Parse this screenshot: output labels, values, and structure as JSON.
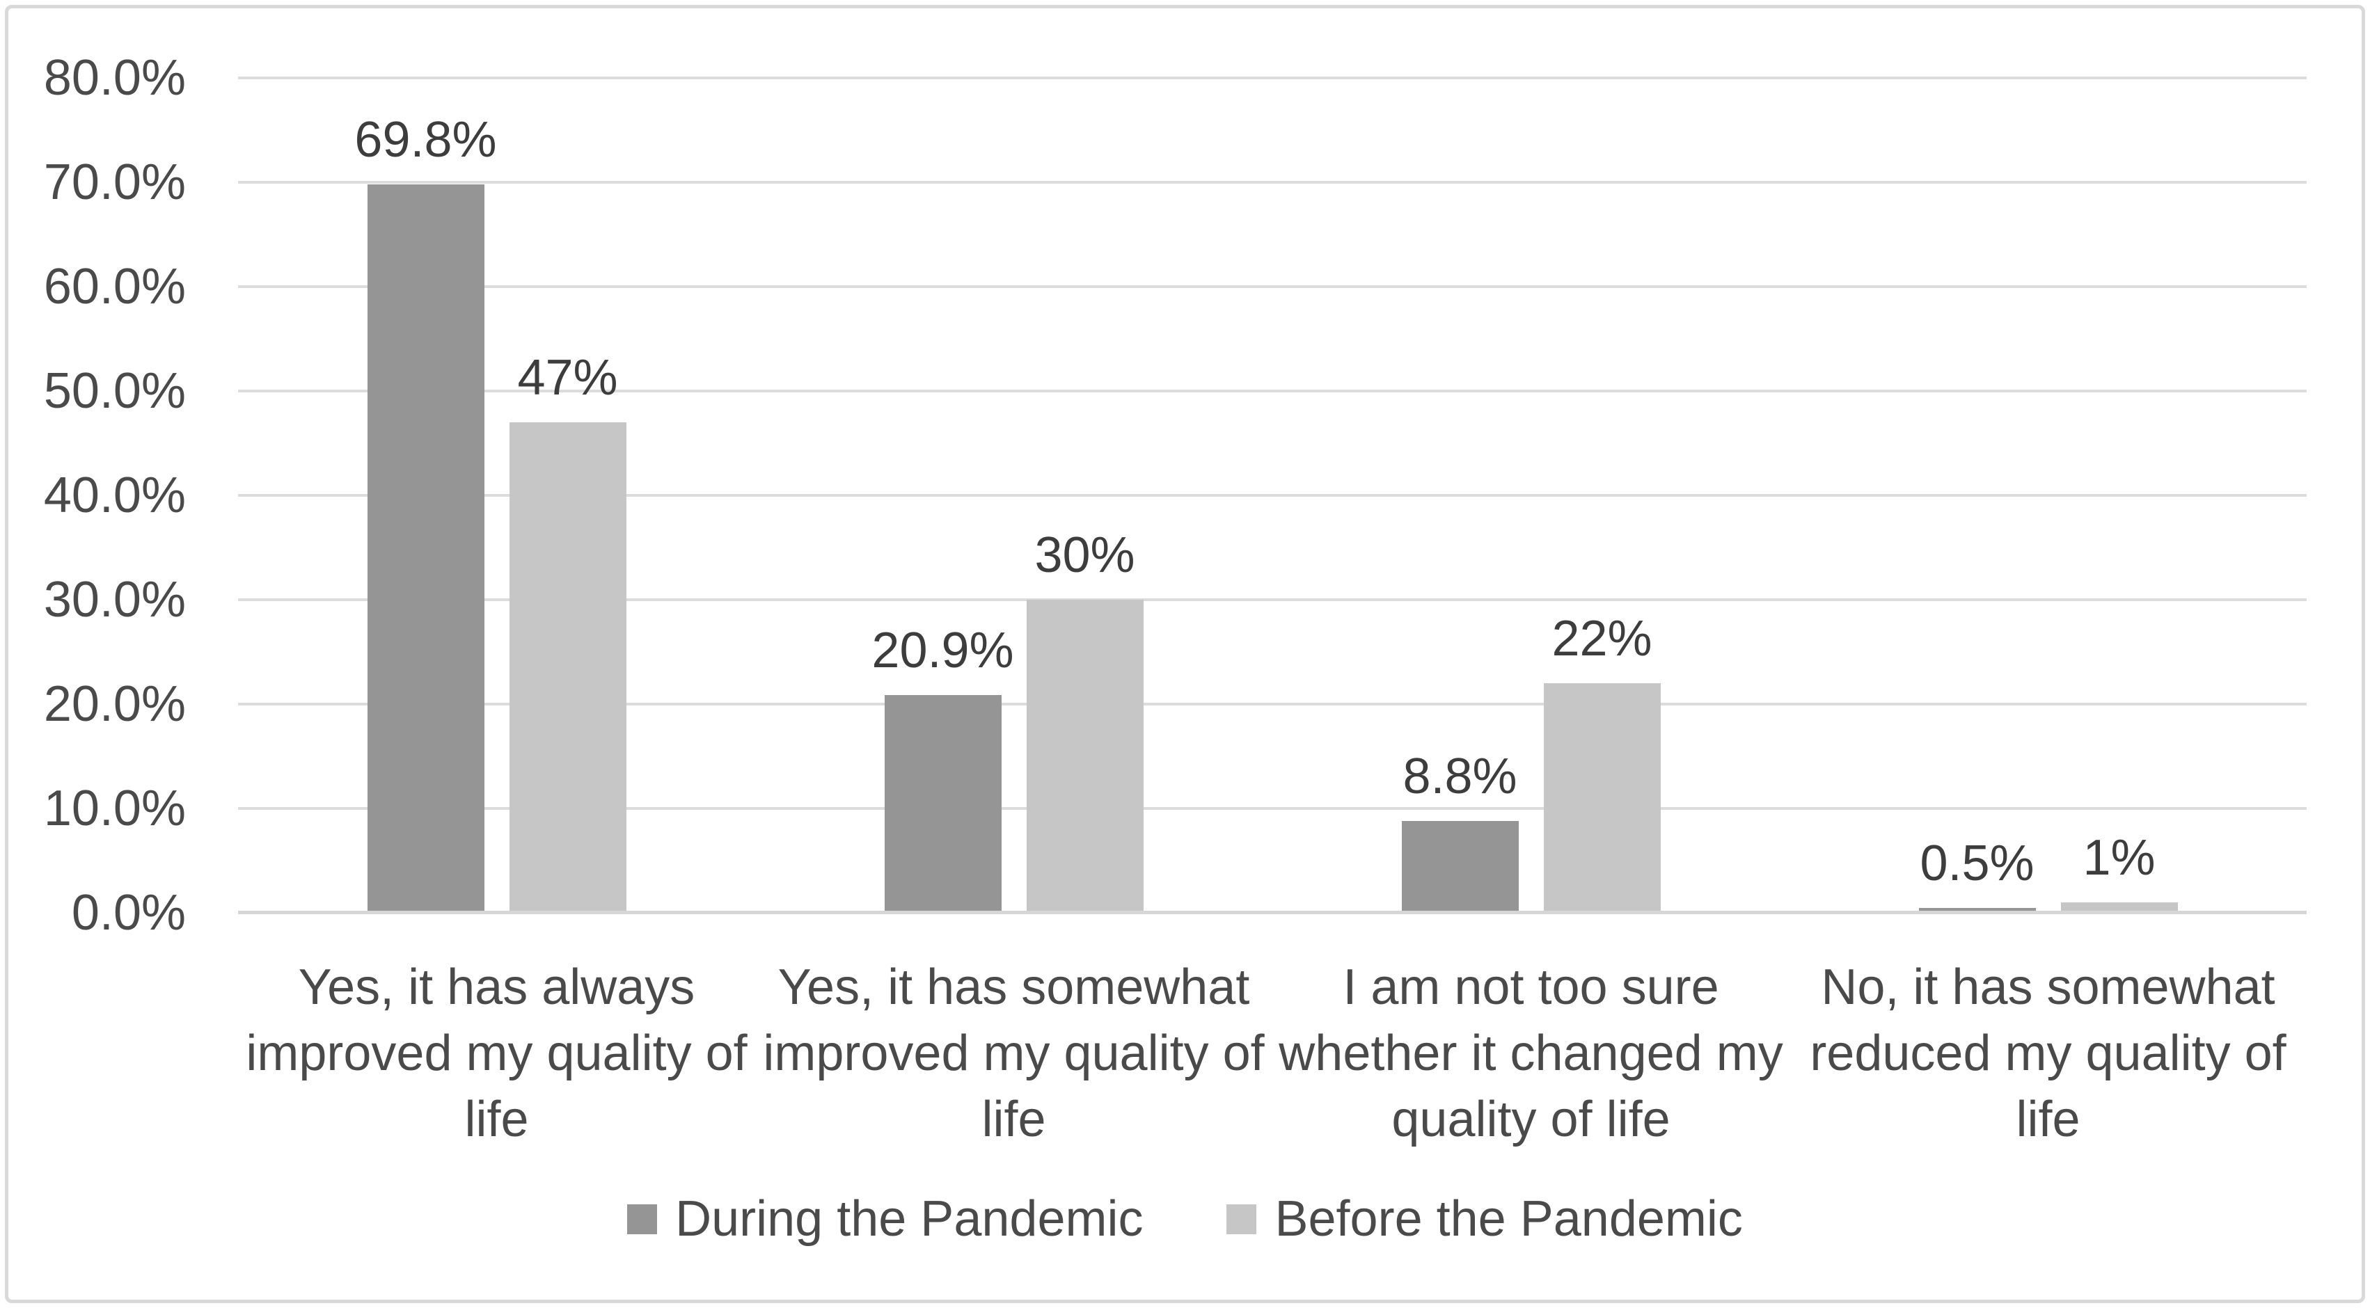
{
  "chart_data": {
    "type": "bar",
    "title": "",
    "xlabel": "",
    "ylabel": "",
    "categories": [
      "Yes, it has always improved my quality of life",
      "Yes, it has somewhat improved my quality of life",
      "I am not too sure whether it changed my quality of life",
      "No, it has somewhat reduced my quality of life"
    ],
    "categories_lines": [
      [
        "Yes, it has always",
        "improved my quality of",
        "life"
      ],
      [
        "Yes, it has somewhat",
        "improved my quality of",
        "life"
      ],
      [
        "I am not too sure",
        "whether it changed my",
        "quality of life"
      ],
      [
        "No, it has somewhat",
        "reduced my quality of",
        "life"
      ]
    ],
    "series": [
      {
        "name": "During the Pandemic",
        "key": "during-the-pandemic",
        "color": "#959595",
        "values": [
          69.8,
          20.9,
          8.8,
          0.5
        ],
        "data_labels": [
          "69.8%",
          "20.9%",
          "8.8%",
          "0.5%"
        ]
      },
      {
        "name": "Before the Pandemic",
        "key": "before-the-pandemic",
        "color": "#C6C6C6",
        "values": [
          47,
          30,
          22,
          1
        ],
        "data_labels": [
          "47%",
          "30%",
          "22%",
          "1%"
        ]
      }
    ],
    "ylim": [
      0,
      80
    ],
    "ytick_step": 10,
    "ytick_labels": [
      "80.0%",
      "70.0%",
      "60.0%",
      "50.0%",
      "40.0%",
      "30.0%",
      "20.0%",
      "10.0%",
      "0.0%"
    ],
    "grid": true,
    "legend_position": "bottom",
    "colors": {
      "gridline": "#DCDCDC",
      "axis_line": "#D6D6D6",
      "frame_border": "#D9D9D9",
      "tick_text": "#4A4A4A",
      "data_label_text": "#3D3D3D",
      "background": "#FFFFFF"
    }
  }
}
